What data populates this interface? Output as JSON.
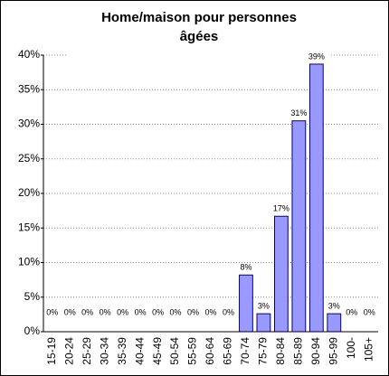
{
  "chart_data": {
    "type": "bar",
    "title_lines": [
      "Home/maison pour personnes",
      "âgées"
    ],
    "categories": [
      "15-19",
      "20-24",
      "25-29",
      "30-34",
      "35-39",
      "40-44",
      "45-49",
      "50-54",
      "55-59",
      "60-64",
      "65-69",
      "70-74",
      "75-79",
      "80-84",
      "85-89",
      "90-94",
      "95-99",
      "100-",
      "105+"
    ],
    "values": [
      0,
      0,
      0,
      0,
      0,
      0,
      0,
      0,
      0,
      0,
      0,
      8.2,
      2.6,
      16.7,
      30.5,
      38.7,
      2.6,
      0,
      0
    ],
    "value_labels": [
      "0%",
      "0%",
      "0%",
      "0%",
      "0%",
      "0%",
      "0%",
      "0%",
      "0%",
      "0%",
      "0%",
      "8%",
      "3%",
      "17%",
      "31%",
      "39%",
      "3%",
      "0%",
      "0%"
    ],
    "color": "#9999ff",
    "ylim": [
      0,
      40
    ],
    "yticks": [
      {
        "value": 0,
        "label": "0%"
      },
      {
        "value": 5,
        "label": "5%"
      },
      {
        "value": 10,
        "label": "10%"
      },
      {
        "value": 15,
        "label": "15%"
      },
      {
        "value": 20,
        "label": "20%"
      },
      {
        "value": 25,
        "label": "25%"
      },
      {
        "value": 30,
        "label": "30%"
      },
      {
        "value": 35,
        "label": "35%"
      },
      {
        "value": 40,
        "label": "40%"
      }
    ],
    "grid": true
  }
}
